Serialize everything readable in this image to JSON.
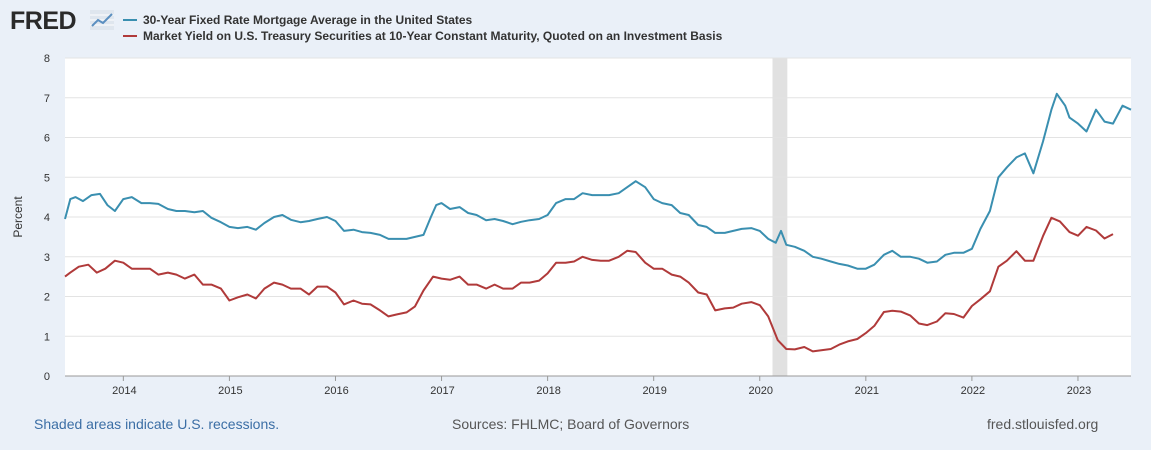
{
  "header": {
    "logo_text": "FRED",
    "logo_icon": "chart-line-icon"
  },
  "footer": {
    "recession_note": "Shaded areas indicate U.S. recessions.",
    "sources": "Sources: FHLMC; Board of Governors",
    "site": "fred.stlouisfed.org"
  },
  "chart_data": {
    "type": "line",
    "ylabel": "Percent",
    "xlim": [
      2013.45,
      2023.5
    ],
    "ylim": [
      0,
      8
    ],
    "yticks": [
      "0",
      "1",
      "2",
      "3",
      "4",
      "5",
      "6",
      "7",
      "8"
    ],
    "xticks": [
      "2014",
      "2015",
      "2016",
      "2017",
      "2018",
      "2019",
      "2020",
      "2021",
      "2022",
      "2023"
    ],
    "grid": true,
    "legend_position": "top",
    "recession_shading": [
      [
        2020.12,
        2020.26
      ]
    ],
    "series": [
      {
        "name": "30-Year Fixed Rate Mortgage Average in the United States",
        "color": "#3a8fb0",
        "points": [
          [
            2013.45,
            3.95
          ],
          [
            2013.5,
            4.45
          ],
          [
            2013.55,
            4.5
          ],
          [
            2013.62,
            4.4
          ],
          [
            2013.7,
            4.55
          ],
          [
            2013.78,
            4.58
          ],
          [
            2013.85,
            4.3
          ],
          [
            2013.92,
            4.15
          ],
          [
            2014.0,
            4.45
          ],
          [
            2014.08,
            4.5
          ],
          [
            2014.17,
            4.35
          ],
          [
            2014.25,
            4.35
          ],
          [
            2014.33,
            4.33
          ],
          [
            2014.42,
            4.2
          ],
          [
            2014.5,
            4.15
          ],
          [
            2014.58,
            4.15
          ],
          [
            2014.67,
            4.12
          ],
          [
            2014.75,
            4.15
          ],
          [
            2014.83,
            3.98
          ],
          [
            2014.92,
            3.87
          ],
          [
            2015.0,
            3.75
          ],
          [
            2015.08,
            3.72
          ],
          [
            2015.17,
            3.75
          ],
          [
            2015.25,
            3.68
          ],
          [
            2015.33,
            3.85
          ],
          [
            2015.42,
            4.0
          ],
          [
            2015.5,
            4.05
          ],
          [
            2015.58,
            3.93
          ],
          [
            2015.67,
            3.87
          ],
          [
            2015.75,
            3.9
          ],
          [
            2015.83,
            3.95
          ],
          [
            2015.92,
            4.0
          ],
          [
            2016.0,
            3.9
          ],
          [
            2016.08,
            3.65
          ],
          [
            2016.17,
            3.68
          ],
          [
            2016.25,
            3.62
          ],
          [
            2016.33,
            3.6
          ],
          [
            2016.42,
            3.55
          ],
          [
            2016.5,
            3.45
          ],
          [
            2016.58,
            3.45
          ],
          [
            2016.67,
            3.45
          ],
          [
            2016.75,
            3.5
          ],
          [
            2016.83,
            3.55
          ],
          [
            2016.9,
            4.0
          ],
          [
            2016.95,
            4.3
          ],
          [
            2017.0,
            4.35
          ],
          [
            2017.08,
            4.2
          ],
          [
            2017.17,
            4.25
          ],
          [
            2017.25,
            4.1
          ],
          [
            2017.33,
            4.05
          ],
          [
            2017.42,
            3.92
          ],
          [
            2017.5,
            3.95
          ],
          [
            2017.58,
            3.9
          ],
          [
            2017.67,
            3.82
          ],
          [
            2017.75,
            3.88
          ],
          [
            2017.83,
            3.92
          ],
          [
            2017.92,
            3.95
          ],
          [
            2018.0,
            4.05
          ],
          [
            2018.08,
            4.35
          ],
          [
            2018.17,
            4.45
          ],
          [
            2018.25,
            4.45
          ],
          [
            2018.33,
            4.6
          ],
          [
            2018.42,
            4.55
          ],
          [
            2018.5,
            4.55
          ],
          [
            2018.58,
            4.55
          ],
          [
            2018.67,
            4.6
          ],
          [
            2018.75,
            4.75
          ],
          [
            2018.83,
            4.9
          ],
          [
            2018.92,
            4.75
          ],
          [
            2019.0,
            4.45
          ],
          [
            2019.08,
            4.35
          ],
          [
            2019.17,
            4.3
          ],
          [
            2019.25,
            4.1
          ],
          [
            2019.33,
            4.05
          ],
          [
            2019.42,
            3.8
          ],
          [
            2019.5,
            3.75
          ],
          [
            2019.58,
            3.6
          ],
          [
            2019.67,
            3.6
          ],
          [
            2019.75,
            3.65
          ],
          [
            2019.83,
            3.7
          ],
          [
            2019.92,
            3.72
          ],
          [
            2020.0,
            3.65
          ],
          [
            2020.08,
            3.45
          ],
          [
            2020.15,
            3.35
          ],
          [
            2020.2,
            3.65
          ],
          [
            2020.25,
            3.3
          ],
          [
            2020.33,
            3.25
          ],
          [
            2020.42,
            3.15
          ],
          [
            2020.5,
            3.0
          ],
          [
            2020.58,
            2.95
          ],
          [
            2020.67,
            2.88
          ],
          [
            2020.75,
            2.82
          ],
          [
            2020.83,
            2.78
          ],
          [
            2020.92,
            2.7
          ],
          [
            2021.0,
            2.7
          ],
          [
            2021.08,
            2.8
          ],
          [
            2021.17,
            3.05
          ],
          [
            2021.25,
            3.15
          ],
          [
            2021.33,
            3.0
          ],
          [
            2021.42,
            3.0
          ],
          [
            2021.5,
            2.95
          ],
          [
            2021.58,
            2.85
          ],
          [
            2021.67,
            2.88
          ],
          [
            2021.75,
            3.05
          ],
          [
            2021.83,
            3.1
          ],
          [
            2021.92,
            3.1
          ],
          [
            2022.0,
            3.2
          ],
          [
            2022.08,
            3.7
          ],
          [
            2022.17,
            4.15
          ],
          [
            2022.25,
            5.0
          ],
          [
            2022.33,
            5.25
          ],
          [
            2022.42,
            5.5
          ],
          [
            2022.5,
            5.6
          ],
          [
            2022.58,
            5.1
          ],
          [
            2022.67,
            5.9
          ],
          [
            2022.75,
            6.7
          ],
          [
            2022.8,
            7.1
          ],
          [
            2022.88,
            6.8
          ],
          [
            2022.92,
            6.5
          ],
          [
            2023.0,
            6.35
          ],
          [
            2023.08,
            6.15
          ],
          [
            2023.17,
            6.7
          ],
          [
            2023.25,
            6.4
          ],
          [
            2023.33,
            6.35
          ],
          [
            2023.42,
            6.8
          ],
          [
            2023.5,
            6.7
          ]
        ]
      },
      {
        "name": "Market Yield on U.S. Treasury Securities at 10-Year Constant Maturity, Quoted on an Investment Basis",
        "color": "#b03a3a",
        "points": [
          [
            2013.45,
            2.5
          ],
          [
            2013.5,
            2.6
          ],
          [
            2013.58,
            2.75
          ],
          [
            2013.67,
            2.8
          ],
          [
            2013.75,
            2.6
          ],
          [
            2013.83,
            2.7
          ],
          [
            2013.92,
            2.9
          ],
          [
            2014.0,
            2.85
          ],
          [
            2014.08,
            2.7
          ],
          [
            2014.17,
            2.7
          ],
          [
            2014.25,
            2.7
          ],
          [
            2014.33,
            2.55
          ],
          [
            2014.42,
            2.6
          ],
          [
            2014.5,
            2.55
          ],
          [
            2014.58,
            2.45
          ],
          [
            2014.67,
            2.55
          ],
          [
            2014.75,
            2.3
          ],
          [
            2014.83,
            2.3
          ],
          [
            2014.92,
            2.2
          ],
          [
            2015.0,
            1.9
          ],
          [
            2015.08,
            1.98
          ],
          [
            2015.17,
            2.05
          ],
          [
            2015.25,
            1.95
          ],
          [
            2015.33,
            2.2
          ],
          [
            2015.42,
            2.35
          ],
          [
            2015.5,
            2.3
          ],
          [
            2015.58,
            2.2
          ],
          [
            2015.67,
            2.2
          ],
          [
            2015.75,
            2.05
          ],
          [
            2015.83,
            2.25
          ],
          [
            2015.92,
            2.25
          ],
          [
            2016.0,
            2.1
          ],
          [
            2016.08,
            1.8
          ],
          [
            2016.17,
            1.9
          ],
          [
            2016.25,
            1.82
          ],
          [
            2016.33,
            1.8
          ],
          [
            2016.42,
            1.65
          ],
          [
            2016.5,
            1.5
          ],
          [
            2016.58,
            1.55
          ],
          [
            2016.67,
            1.6
          ],
          [
            2016.75,
            1.75
          ],
          [
            2016.83,
            2.15
          ],
          [
            2016.92,
            2.5
          ],
          [
            2017.0,
            2.45
          ],
          [
            2017.08,
            2.42
          ],
          [
            2017.17,
            2.5
          ],
          [
            2017.25,
            2.3
          ],
          [
            2017.33,
            2.3
          ],
          [
            2017.42,
            2.2
          ],
          [
            2017.5,
            2.3
          ],
          [
            2017.58,
            2.2
          ],
          [
            2017.67,
            2.2
          ],
          [
            2017.75,
            2.35
          ],
          [
            2017.83,
            2.35
          ],
          [
            2017.92,
            2.4
          ],
          [
            2018.0,
            2.58
          ],
          [
            2018.08,
            2.85
          ],
          [
            2018.17,
            2.85
          ],
          [
            2018.25,
            2.88
          ],
          [
            2018.33,
            3.0
          ],
          [
            2018.42,
            2.92
          ],
          [
            2018.5,
            2.9
          ],
          [
            2018.58,
            2.9
          ],
          [
            2018.67,
            3.0
          ],
          [
            2018.75,
            3.15
          ],
          [
            2018.83,
            3.12
          ],
          [
            2018.92,
            2.85
          ],
          [
            2019.0,
            2.7
          ],
          [
            2019.08,
            2.7
          ],
          [
            2019.17,
            2.55
          ],
          [
            2019.25,
            2.5
          ],
          [
            2019.33,
            2.35
          ],
          [
            2019.42,
            2.1
          ],
          [
            2019.5,
            2.05
          ],
          [
            2019.58,
            1.65
          ],
          [
            2019.67,
            1.7
          ],
          [
            2019.75,
            1.72
          ],
          [
            2019.83,
            1.82
          ],
          [
            2019.92,
            1.86
          ],
          [
            2020.0,
            1.78
          ],
          [
            2020.08,
            1.5
          ],
          [
            2020.17,
            0.9
          ],
          [
            2020.25,
            0.68
          ],
          [
            2020.33,
            0.67
          ],
          [
            2020.42,
            0.73
          ],
          [
            2020.5,
            0.62
          ],
          [
            2020.58,
            0.65
          ],
          [
            2020.67,
            0.68
          ],
          [
            2020.75,
            0.79
          ],
          [
            2020.83,
            0.87
          ],
          [
            2020.92,
            0.93
          ],
          [
            2021.0,
            1.08
          ],
          [
            2021.08,
            1.26
          ],
          [
            2021.17,
            1.61
          ],
          [
            2021.25,
            1.64
          ],
          [
            2021.33,
            1.62
          ],
          [
            2021.42,
            1.52
          ],
          [
            2021.5,
            1.32
          ],
          [
            2021.58,
            1.28
          ],
          [
            2021.67,
            1.37
          ],
          [
            2021.75,
            1.58
          ],
          [
            2021.83,
            1.56
          ],
          [
            2021.92,
            1.47
          ],
          [
            2022.0,
            1.76
          ],
          [
            2022.08,
            1.93
          ],
          [
            2022.17,
            2.13
          ],
          [
            2022.25,
            2.75
          ],
          [
            2022.33,
            2.9
          ],
          [
            2022.42,
            3.14
          ],
          [
            2022.5,
            2.9
          ],
          [
            2022.58,
            2.9
          ],
          [
            2022.67,
            3.52
          ],
          [
            2022.75,
            3.98
          ],
          [
            2022.83,
            3.89
          ],
          [
            2022.92,
            3.62
          ],
          [
            2023.0,
            3.53
          ],
          [
            2023.08,
            3.75
          ],
          [
            2023.17,
            3.66
          ],
          [
            2023.25,
            3.46
          ],
          [
            2023.33,
            3.57
          ]
        ]
      }
    ]
  }
}
